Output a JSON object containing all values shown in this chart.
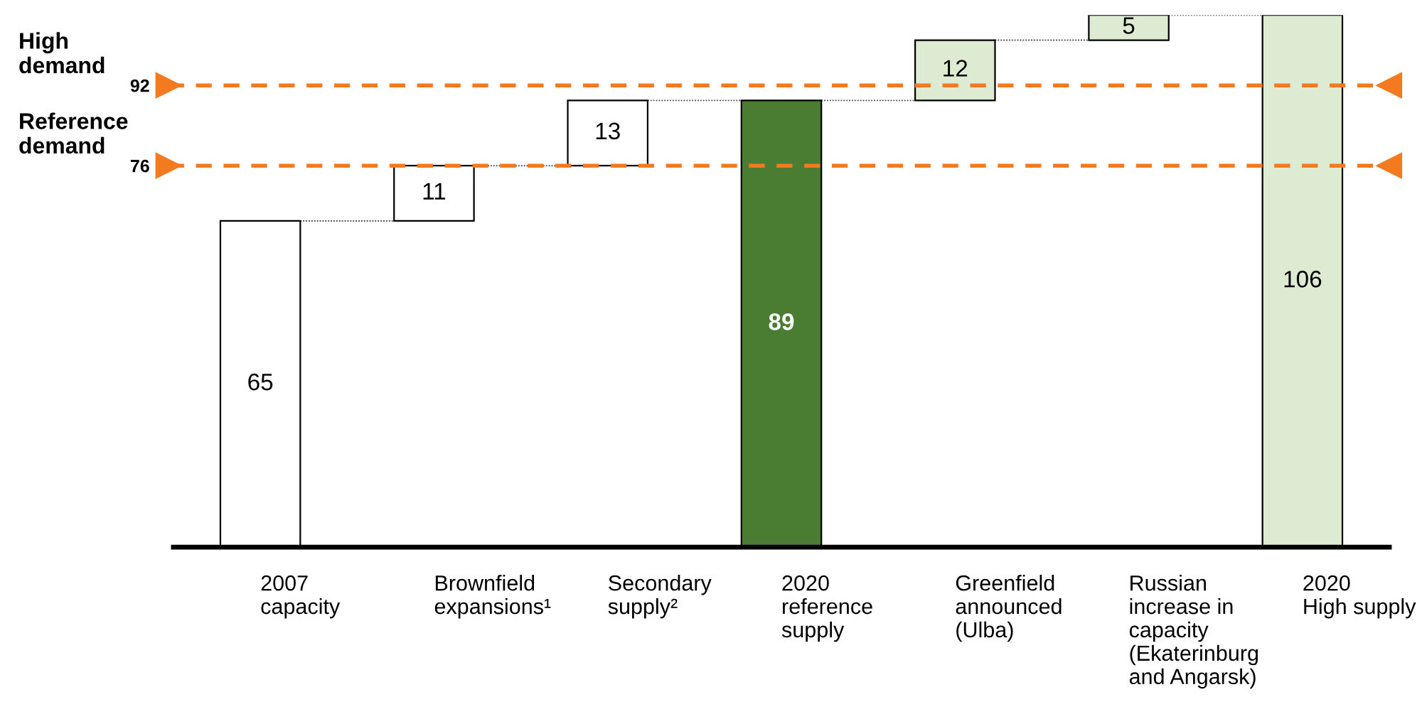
{
  "chart_data": {
    "type": "bar",
    "categories": [
      "2007\ncapacity",
      "Brownfield\nexpansions¹",
      "Secondary\nsupply²",
      "2020\nreference\nsupply",
      "Greenfield\nannounced\n(Ulba)",
      "Russian\nincrease in\ncapacity\n(Ekaterinburg\nand Angarsk)",
      "2020\nHigh supply"
    ],
    "values": [
      65,
      11,
      13,
      89,
      12,
      5,
      106
    ],
    "base": [
      0,
      65,
      76,
      0,
      89,
      101,
      0
    ],
    "colors": [
      "#ffffff",
      "#ffffff",
      "#ffffff",
      "#4a7d32",
      "#dcebd2",
      "#dcebd2",
      "#dcebd2"
    ],
    "data_labels": true,
    "ylim": [
      0,
      106
    ],
    "yticks": [
      76,
      92
    ],
    "ref_lines": [
      {
        "axis": "y",
        "value": 92,
        "label": "High\ndemand",
        "color": "#f47a20",
        "line_style": "dashed"
      },
      {
        "axis": "y",
        "value": 76,
        "label": "Reference\ndemand",
        "color": "#f47a20",
        "line_style": "dashed"
      }
    ]
  }
}
